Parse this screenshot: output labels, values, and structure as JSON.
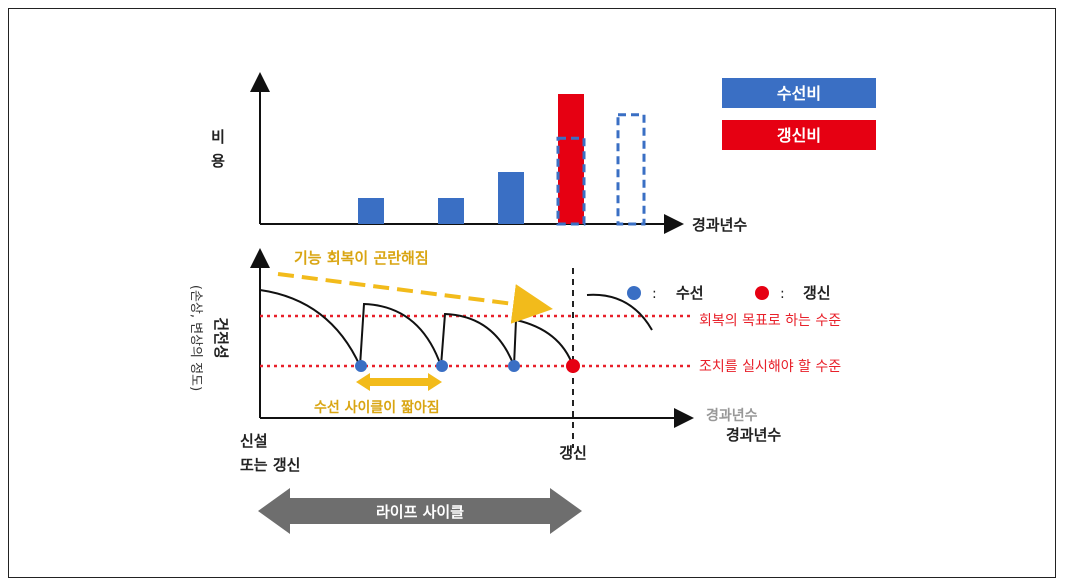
{
  "colors": {
    "repair": "#3a6fc4",
    "renewal": "#e60012",
    "yellow": "#f2bb1b",
    "arrow_gray": "#6e6e6e",
    "dotted_red": "#e8202a",
    "legend_blue": "#3a6fc4"
  },
  "top_chart": {
    "y_label": "비용",
    "x_label": "경과년수",
    "legend": [
      {
        "label": "수선비",
        "color": "#3a6fc4"
      },
      {
        "label": "갱신비",
        "color": "#e60012"
      }
    ],
    "bars": [
      {
        "kind": "repair",
        "value": 1
      },
      {
        "kind": "repair",
        "value": 1
      },
      {
        "kind": "repair",
        "value": 2
      },
      {
        "kind": "renewal",
        "value": 5
      },
      {
        "kind": "repair-outline",
        "value": 3.3
      },
      {
        "kind": "repair-outline",
        "value": 4.2
      }
    ]
  },
  "bottom_chart": {
    "y_label": "건전성",
    "y_sub_label": "(손상, 변상의 정도)",
    "x_label": "경과년수",
    "x_label_overlap": "경과년수",
    "trend_text": "기능 회복이 곤란해짐",
    "legend": [
      {
        "label": "수선",
        "color": "#3a6fc4",
        "sep": ":"
      },
      {
        "label": "갱신",
        "color": "#e60012",
        "sep": ":"
      }
    ],
    "target_level": "회복의 목표로 하는 수준",
    "action_level": "조치를 실시해야 할 수준",
    "cycle_text": "수선 사이클이 짧아짐",
    "start_label_line1": "신설",
    "start_label_line2": "또는 갱신",
    "renew_label": "갱신"
  },
  "lifecycle": {
    "label": "라이프 사이클"
  }
}
